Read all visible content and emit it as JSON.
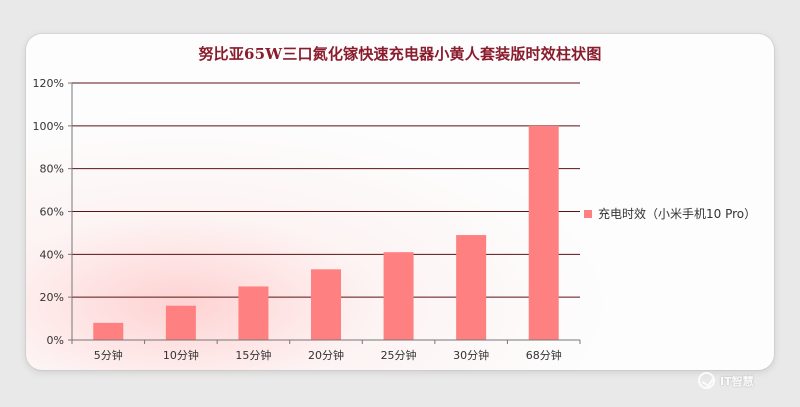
{
  "chart_data": {
    "type": "bar",
    "title": "努比亚65W三口氮化镓快速充电器小黄人套装版时效柱状图",
    "categories": [
      "5分钟",
      "10分钟",
      "15分钟",
      "20分钟",
      "25分钟",
      "30分钟",
      "68分钟"
    ],
    "series": [
      {
        "name": "充电时效（小米手机10 Pro）",
        "values": [
          8,
          16,
          25,
          33,
          41,
          49,
          100
        ],
        "color": "#ff8080"
      }
    ],
    "y_tick_labels": [
      "0%",
      "20%",
      "40%",
      "60%",
      "80%",
      "100%",
      "120%"
    ],
    "ylim": [
      0,
      120
    ],
    "grid": true,
    "legend": "right"
  },
  "watermark": {
    "text": "IT智慧"
  }
}
